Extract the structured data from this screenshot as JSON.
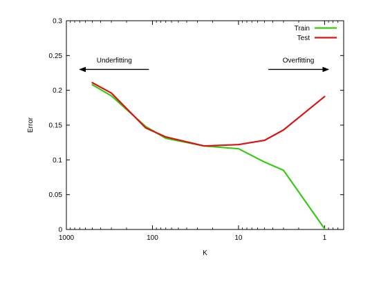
{
  "chart_data": {
    "type": "line",
    "xlabel": "K",
    "ylabel": "Error",
    "x_scale": "log",
    "x_reversed": true,
    "xlim": [
      1000,
      0.6
    ],
    "ylim": [
      0,
      0.3
    ],
    "x_ticks": [
      {
        "value": 1000,
        "label": "1000"
      },
      {
        "value": 100,
        "label": "100"
      },
      {
        "value": 10,
        "label": "10"
      },
      {
        "value": 1,
        "label": "1"
      }
    ],
    "y_ticks": [
      {
        "value": 0,
        "label": "0"
      },
      {
        "value": 0.05,
        "label": "0.05"
      },
      {
        "value": 0.1,
        "label": "0.1"
      },
      {
        "value": 0.15,
        "label": "0.15"
      },
      {
        "value": 0.2,
        "label": "0.2"
      },
      {
        "value": 0.25,
        "label": "0.25"
      },
      {
        "value": 0.3,
        "label": "0.3"
      }
    ],
    "grid": false,
    "legend_position": "top-right",
    "series": [
      {
        "name": "Train",
        "color": "#33cc11",
        "x": [
          500,
          300,
          120,
          70,
          25,
          10,
          5,
          3,
          1
        ],
        "y": [
          0.208,
          0.192,
          0.148,
          0.131,
          0.12,
          0.116,
          0.097,
          0.085,
          0.001
        ]
      },
      {
        "name": "Test",
        "color": "#dd1111",
        "x": [
          500,
          300,
          120,
          70,
          25,
          10,
          5,
          3,
          1
        ],
        "y": [
          0.211,
          0.196,
          0.146,
          0.133,
          0.12,
          0.122,
          0.128,
          0.143,
          0.191
        ]
      }
    ],
    "annotations": [
      {
        "text": "Underfitting",
        "arrow": "left",
        "x_from": 110,
        "x_to": 700,
        "y": 0.23
      },
      {
        "text": "Overfitting",
        "arrow": "right",
        "x_from": 4.5,
        "x_to": 0.9,
        "y": 0.23
      }
    ]
  }
}
